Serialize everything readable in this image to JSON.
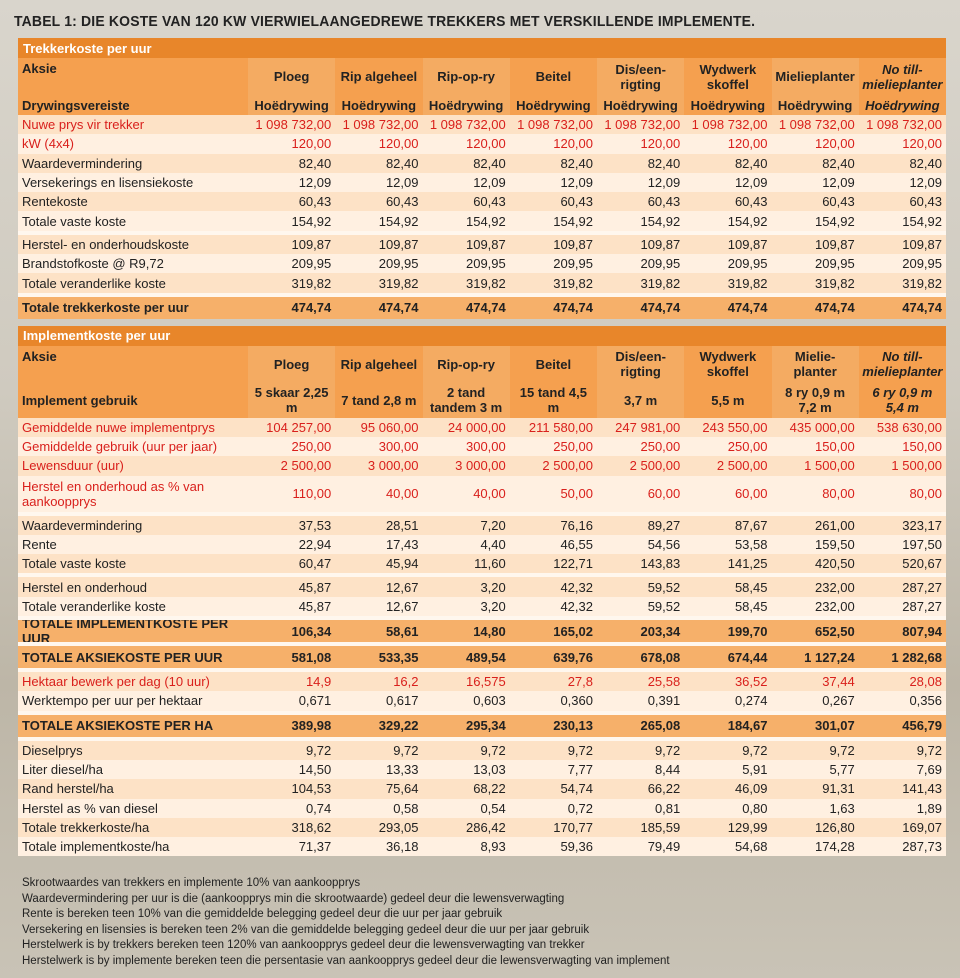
{
  "title": "TABEL 1: DIE KOSTE VAN 120 KW VIERWIELAANGEDREWE TREKKERS MET VERSKILLENDE IMPLEMENTE.",
  "sections": [
    {
      "title": "Trekkerkoste per uur",
      "header_rows": [
        {
          "label": "Aksie",
          "values": [
            "Ploeg",
            "Rip algeheel",
            "Rip-op-ry",
            "Beitel",
            "Dis/een-rigting",
            "Wydwerk skoffel",
            "Mielieplanter",
            "No till-mielieplanter"
          ]
        },
        {
          "label": "Drywingsvereiste",
          "values": [
            "Hoëdrywing",
            "Hoëdrywing",
            "Hoëdrywing",
            "Hoëdrywing",
            "Hoëdrywing",
            "Hoëdrywing",
            "Hoëdrywing",
            "Hoëdrywing"
          ]
        }
      ],
      "groups": [
        [
          {
            "label": "Nuwe prys vir trekker",
            "color": "red",
            "values": [
              "1 098 732,00",
              "1 098 732,00",
              "1 098 732,00",
              "1 098 732,00",
              "1 098 732,00",
              "1 098 732,00",
              "1 098 732,00",
              "1 098 732,00"
            ]
          },
          {
            "label": "kW (4x4)",
            "color": "red",
            "values": [
              "120,00",
              "120,00",
              "120,00",
              "120,00",
              "120,00",
              "120,00",
              "120,00",
              "120,00"
            ]
          },
          {
            "label": "Waardevermindering",
            "values": [
              "82,40",
              "82,40",
              "82,40",
              "82,40",
              "82,40",
              "82,40",
              "82,40",
              "82,40"
            ]
          },
          {
            "label": "Versekerings en lisensiekoste",
            "values": [
              "12,09",
              "12,09",
              "12,09",
              "12,09",
              "12,09",
              "12,09",
              "12,09",
              "12,09"
            ]
          },
          {
            "label": "Rentekoste",
            "values": [
              "60,43",
              "60,43",
              "60,43",
              "60,43",
              "60,43",
              "60,43",
              "60,43",
              "60,43"
            ]
          },
          {
            "label": "Totale vaste koste",
            "values": [
              "154,92",
              "154,92",
              "154,92",
              "154,92",
              "154,92",
              "154,92",
              "154,92",
              "154,92"
            ]
          }
        ],
        [
          {
            "label": "Herstel- en onderhoudskoste",
            "values": [
              "109,87",
              "109,87",
              "109,87",
              "109,87",
              "109,87",
              "109,87",
              "109,87",
              "109,87"
            ]
          },
          {
            "label": "Brandstofkoste @ R9,72",
            "values": [
              "209,95",
              "209,95",
              "209,95",
              "209,95",
              "209,95",
              "209,95",
              "209,95",
              "209,95"
            ]
          },
          {
            "label": "Totale veranderlike koste",
            "values": [
              "319,82",
              "319,82",
              "319,82",
              "319,82",
              "319,82",
              "319,82",
              "319,82",
              "319,82"
            ]
          }
        ],
        [
          {
            "label": "Totale trekkerkoste per uur",
            "bold": true,
            "values": [
              "474,74",
              "474,74",
              "474,74",
              "474,74",
              "474,74",
              "474,74",
              "474,74",
              "474,74"
            ]
          }
        ]
      ]
    },
    {
      "title": "Implementkoste per uur",
      "header_rows": [
        {
          "label": "Aksie",
          "values": [
            "Ploeg",
            "Rip algeheel",
            "Rip-op-ry",
            "Beitel",
            "Dis/een-rigting",
            "Wydwerk skoffel",
            "Mielie-planter",
            "No till-mielieplanter"
          ]
        },
        {
          "label": "Implement gebruik",
          "values": [
            "5 skaar 2,25 m",
            "7 tand 2,8 m",
            "2 tand tandem 3 m",
            "15 tand 4,5 m",
            "3,7 m",
            "5,5 m",
            "8 ry 0,9 m 7,2 m",
            "6 ry 0,9 m 5,4 m"
          ]
        }
      ],
      "groups": [
        [
          {
            "label": "Gemiddelde nuwe implementprys",
            "color": "red",
            "values": [
              "104 257,00",
              "95 060,00",
              "24 000,00",
              "211 580,00",
              "247 981,00",
              "243 550,00",
              "435 000,00",
              "538 630,00"
            ]
          },
          {
            "label": "Gemiddelde gebruik (uur per jaar)",
            "color": "red",
            "values": [
              "250,00",
              "300,00",
              "300,00",
              "250,00",
              "250,00",
              "250,00",
              "150,00",
              "150,00"
            ]
          },
          {
            "label": "Lewensduur (uur)",
            "color": "red",
            "values": [
              "2 500,00",
              "3 000,00",
              "3 000,00",
              "2 500,00",
              "2 500,00",
              "2 500,00",
              "1 500,00",
              "1 500,00"
            ]
          },
          {
            "label": "Herstel en onderhoud  as % van aankoopprys",
            "color": "red",
            "values": [
              "110,00",
              "40,00",
              "40,00",
              "50,00",
              "60,00",
              "60,00",
              "80,00",
              "80,00"
            ]
          }
        ],
        [
          {
            "label": "Waardevermindering",
            "values": [
              "37,53",
              "28,51",
              "7,20",
              "76,16",
              "89,27",
              "87,67",
              "261,00",
              "323,17"
            ]
          },
          {
            "label": "Rente",
            "values": [
              "22,94",
              "17,43",
              "4,40",
              "46,55",
              "54,56",
              "53,58",
              "159,50",
              "197,50"
            ]
          },
          {
            "label": "Totale vaste koste",
            "values": [
              "60,47",
              "45,94",
              "11,60",
              "122,71",
              "143,83",
              "141,25",
              "420,50",
              "520,67"
            ]
          }
        ],
        [
          {
            "label": "Herstel en onderhoud",
            "values": [
              "45,87",
              "12,67",
              "3,20",
              "42,32",
              "59,52",
              "58,45",
              "232,00",
              "287,27"
            ]
          },
          {
            "label": "Totale veranderlike koste",
            "values": [
              "45,87",
              "12,67",
              "3,20",
              "42,32",
              "59,52",
              "58,45",
              "232,00",
              "287,27"
            ]
          }
        ],
        [
          {
            "label": "TOTALE IMPLEMENTKOSTE PER UUR",
            "bold": true,
            "values": [
              "106,34",
              "58,61",
              "14,80",
              "165,02",
              "203,34",
              "199,70",
              "652,50",
              "807,94"
            ]
          }
        ],
        [
          {
            "label": "TOTALE AKSIEKOSTE PER UUR",
            "bold": true,
            "values": [
              "581,08",
              "533,35",
              "489,54",
              "639,76",
              "678,08",
              "674,44",
              "1 127,24",
              "1 282,68"
            ]
          }
        ],
        [
          {
            "label": "Hektaar bewerk per dag (10 uur)",
            "color": "red",
            "values": [
              "14,9",
              "16,2",
              "16,575",
              "27,8",
              "25,58",
              "36,52",
              "37,44",
              "28,08"
            ]
          },
          {
            "label": "Werktempo per uur per hektaar",
            "values": [
              "0,671",
              "0,617",
              "0,603",
              "0,360",
              "0,391",
              "0,274",
              "0,267",
              "0,356"
            ]
          }
        ],
        [
          {
            "label": "TOTALE AKSIEKOSTE PER HA",
            "bold": true,
            "values": [
              "389,98",
              "329,22",
              "295,34",
              "230,13",
              "265,08",
              "184,67",
              "301,07",
              "456,79"
            ]
          }
        ],
        [
          {
            "label": "Dieselprys",
            "values": [
              "9,72",
              "9,72",
              "9,72",
              "9,72",
              "9,72",
              "9,72",
              "9,72",
              "9,72"
            ]
          },
          {
            "label": "Liter diesel/ha",
            "values": [
              "14,50",
              "13,33",
              "13,03",
              "7,77",
              "8,44",
              "5,91",
              "5,77",
              "7,69"
            ]
          },
          {
            "label": "Rand herstel/ha",
            "values": [
              "104,53",
              "75,64",
              "68,22",
              "54,74",
              "66,22",
              "46,09",
              "91,31",
              "141,43"
            ]
          },
          {
            "label": "Herstel as % van diesel",
            "values": [
              "0,74",
              "0,58",
              "0,54",
              "0,72",
              "0,81",
              "0,80",
              "1,63",
              "1,89"
            ]
          },
          {
            "label": "Totale trekkerkoste/ha",
            "values": [
              "318,62",
              "293,05",
              "286,42",
              "170,77",
              "185,59",
              "129,99",
              "126,80",
              "169,07"
            ]
          },
          {
            "label": "Totale implementkoste/ha",
            "values": [
              "71,37",
              "36,18",
              "8,93",
              "59,36",
              "79,49",
              "54,68",
              "174,28",
              "287,73"
            ]
          }
        ]
      ]
    }
  ],
  "notes": [
    "Skrootwaardes van trekkers en implemente 10% van aankoopprys",
    "Waardevermindering per uur is die (aankoopprys min die skrootwaarde) gedeel deur die lewensverwagting",
    "Rente is bereken teen 10% van die gemiddelde belegging gedeel deur die uur per jaar gebruik",
    "Versekering en lisensies is bereken teen 2% van die gemiddelde belegging gedeel deur die uur per jaar gebruik",
    "Herstelwerk is by trekkers bereken teen 120% van aankoopprys gedeel deur die lewensverwagting van trekker",
    "Herstelwerk is by implemente bereken teen die persentasie van aankoopprys gedeel deur die lewensverwagting van implement"
  ]
}
